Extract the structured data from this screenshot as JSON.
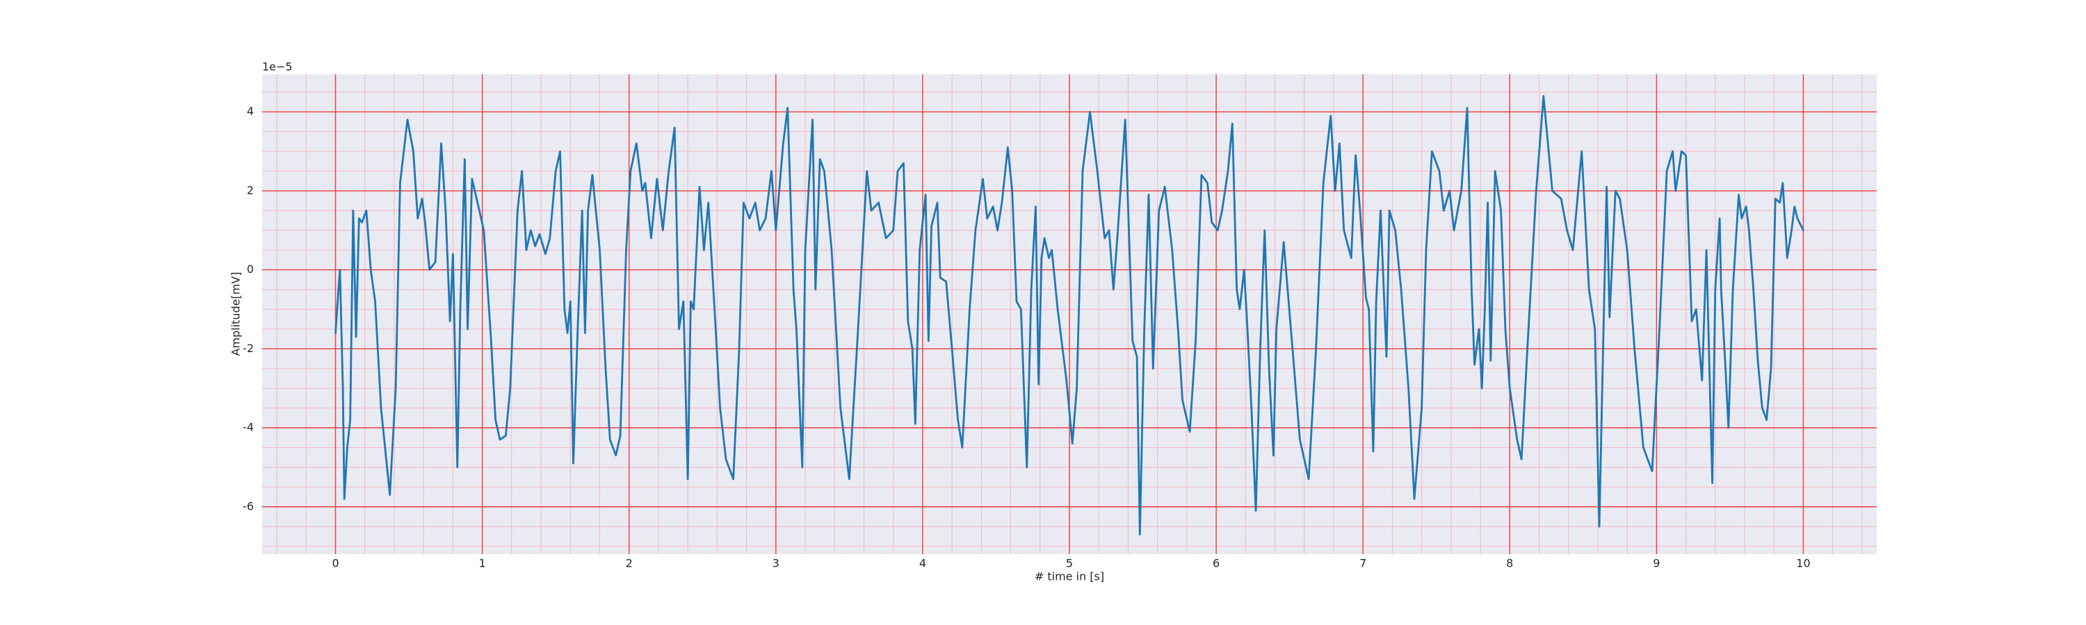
{
  "chart_data": {
    "type": "line",
    "x_label": "# time in [s]",
    "y_label": "Amplitude[mV]",
    "offset_label": "1e−5",
    "color": "#1f77b4",
    "grid": true,
    "grid_color": "#ee3b3b",
    "minor_grid_color": "#f4b6c0",
    "background": "#eaeaf2",
    "xlim": [
      -0.5,
      10.5
    ],
    "ylim": [
      -7.2,
      4.95
    ],
    "xticks": [
      0,
      1,
      2,
      3,
      4,
      5,
      6,
      7,
      8,
      9,
      10
    ],
    "yticks": [
      -6,
      -4,
      -2,
      0,
      2,
      4
    ],
    "xminor_ticks": [
      -0.4,
      -0.2,
      0.2,
      0.4,
      0.6,
      0.8,
      1.2,
      1.4,
      1.6,
      1.8,
      2.2,
      2.4,
      2.6,
      2.8,
      3.2,
      3.4,
      3.6,
      3.8,
      4.2,
      4.4,
      4.6,
      4.8,
      5.2,
      5.4,
      5.6,
      5.8,
      6.2,
      6.4,
      6.6,
      6.8,
      7.2,
      7.4,
      7.6,
      7.8,
      8.2,
      8.4,
      8.6,
      8.8,
      9.2,
      9.4,
      9.6,
      9.8,
      10.2,
      10.4
    ],
    "yminor_ticks": [
      -7,
      -6.5,
      -5.5,
      -5,
      -4.5,
      -3.5,
      -3,
      -2.5,
      -1.5,
      -1,
      -0.5,
      0.5,
      1,
      1.5,
      2.5,
      3,
      3.5,
      4.5
    ],
    "x": [
      0,
      0.02,
      0.03,
      0.05,
      0.06,
      0.08,
      0.1,
      0.12,
      0.14,
      0.16,
      0.18,
      0.2,
      0.21,
      0.24,
      0.27,
      0.31,
      0.37,
      0.41,
      0.44,
      0.49,
      0.53,
      0.56,
      0.59,
      0.61,
      0.64,
      0.68,
      0.72,
      0.75,
      0.78,
      0.8,
      0.83,
      0.85,
      0.88,
      0.9,
      0.93,
      0.98,
      1.01,
      1.06,
      1.09,
      1.12,
      1.16,
      1.19,
      1.24,
      1.27,
      1.3,
      1.33,
      1.36,
      1.39,
      1.43,
      1.46,
      1.5,
      1.53,
      1.56,
      1.58,
      1.6,
      1.62,
      1.65,
      1.68,
      1.7,
      1.72,
      1.75,
      1.8,
      1.84,
      1.87,
      1.91,
      1.94,
      1.98,
      2.01,
      2.05,
      2.09,
      2.11,
      2.15,
      2.19,
      2.23,
      2.27,
      2.31,
      2.34,
      2.37,
      2.4,
      2.42,
      2.44,
      2.48,
      2.51,
      2.54,
      2.59,
      2.62,
      2.66,
      2.71,
      2.75,
      2.78,
      2.82,
      2.86,
      2.89,
      2.93,
      2.97,
      3.0,
      3.05,
      3.08,
      3.12,
      3.14,
      3.18,
      3.2,
      3.25,
      3.27,
      3.3,
      3.33,
      3.38,
      3.44,
      3.5,
      3.56,
      3.62,
      3.65,
      3.7,
      3.75,
      3.8,
      3.83,
      3.87,
      3.9,
      3.93,
      3.95,
      3.98,
      4.02,
      4.04,
      4.06,
      4.1,
      4.12,
      4.16,
      4.2,
      4.24,
      4.27,
      4.32,
      4.36,
      4.41,
      4.44,
      4.48,
      4.51,
      4.54,
      4.58,
      4.61,
      4.64,
      4.67,
      4.71,
      4.74,
      4.77,
      4.79,
      4.81,
      4.83,
      4.86,
      4.88,
      4.92,
      4.98,
      5.02,
      5.05,
      5.09,
      5.14,
      5.19,
      5.24,
      5.27,
      5.3,
      5.33,
      5.38,
      5.43,
      5.46,
      5.48,
      5.51,
      5.54,
      5.57,
      5.61,
      5.65,
      5.7,
      5.74,
      5.77,
      5.82,
      5.86,
      5.9,
      5.94,
      5.97,
      6.01,
      6.04,
      6.08,
      6.11,
      6.14,
      6.16,
      6.19,
      6.21,
      6.24,
      6.27,
      6.3,
      6.33,
      6.36,
      6.39,
      6.41,
      6.46,
      6.52,
      6.57,
      6.63,
      6.68,
      6.73,
      6.78,
      6.81,
      6.84,
      6.87,
      6.92,
      6.95,
      6.98,
      7.02,
      7.04,
      7.07,
      7.09,
      7.12,
      7.16,
      7.18,
      7.22,
      7.26,
      7.31,
      7.35,
      7.4,
      7.43,
      7.47,
      7.52,
      7.55,
      7.59,
      7.62,
      7.67,
      7.71,
      7.74,
      7.76,
      7.79,
      7.81,
      7.83,
      7.85,
      7.87,
      7.9,
      7.94,
      7.97,
      8.0,
      8.05,
      8.08,
      8.12,
      8.18,
      8.23,
      8.29,
      8.35,
      8.39,
      8.43,
      8.49,
      8.54,
      8.58,
      8.61,
      8.63,
      8.66,
      8.68,
      8.72,
      8.75,
      8.8,
      8.85,
      8.91,
      8.97,
      9.02,
      9.07,
      9.11,
      9.13,
      9.17,
      9.2,
      9.24,
      9.27,
      9.31,
      9.34,
      9.38,
      9.4,
      9.43,
      9.44,
      9.47,
      9.49,
      9.52,
      9.56,
      9.58,
      9.61,
      9.63,
      9.66,
      9.69,
      9.72,
      9.75,
      9.78,
      9.81,
      9.84,
      9.86,
      9.89,
      9.92,
      9.94,
      9.96,
      10.0
    ],
    "values": [
      -1.6,
      -0.5,
      0.0,
      -3.0,
      -5.8,
      -4.5,
      -3.8,
      1.5,
      -1.7,
      1.3,
      1.2,
      1.4,
      1.5,
      0.0,
      -0.8,
      -3.5,
      -5.7,
      -3.0,
      2.2,
      3.8,
      3.0,
      1.3,
      1.8,
      1.2,
      0.0,
      0.2,
      3.2,
      1.5,
      -1.3,
      0.4,
      -5.0,
      -1.0,
      2.8,
      -1.5,
      2.3,
      1.5,
      1.0,
      -1.8,
      -3.8,
      -4.3,
      -4.2,
      -3.0,
      1.5,
      2.5,
      0.5,
      1.0,
      0.6,
      0.9,
      0.4,
      0.8,
      2.5,
      3.0,
      -1.0,
      -1.6,
      -0.8,
      -4.9,
      -1.5,
      1.5,
      -1.6,
      1.5,
      2.4,
      0.5,
      -2.5,
      -4.3,
      -4.7,
      -4.2,
      0.5,
      2.5,
      3.2,
      2.0,
      2.2,
      0.8,
      2.3,
      1.0,
      2.5,
      3.6,
      -1.5,
      -0.8,
      -5.3,
      -0.8,
      -1.0,
      2.1,
      0.5,
      1.7,
      -1.5,
      -3.5,
      -4.8,
      -5.3,
      -2.0,
      1.7,
      1.3,
      1.7,
      1.0,
      1.3,
      2.5,
      1.0,
      3.2,
      4.1,
      -0.5,
      -1.5,
      -5.0,
      0.5,
      3.8,
      -0.5,
      2.8,
      2.5,
      0.5,
      -3.5,
      -5.3,
      -1.5,
      2.5,
      1.5,
      1.7,
      0.8,
      1.0,
      2.5,
      2.7,
      -1.3,
      -2.0,
      -3.9,
      0.5,
      1.9,
      -1.8,
      1.1,
      1.7,
      -0.2,
      -0.3,
      -2.0,
      -3.8,
      -4.5,
      -1.0,
      1.0,
      2.3,
      1.3,
      1.6,
      1.0,
      1.7,
      3.1,
      2.0,
      -0.8,
      -1.0,
      -5.0,
      -0.5,
      1.6,
      -2.9,
      0.3,
      0.8,
      0.3,
      0.5,
      -1.0,
      -2.8,
      -4.4,
      -3.0,
      2.5,
      4.0,
      2.5,
      0.8,
      1.0,
      -0.5,
      1.0,
      3.8,
      -1.8,
      -2.2,
      -6.7,
      -1.5,
      1.9,
      -2.5,
      1.5,
      2.1,
      0.5,
      -1.5,
      -3.3,
      -4.1,
      -1.8,
      2.4,
      2.2,
      1.2,
      1.0,
      1.5,
      2.5,
      3.7,
      -0.5,
      -1.0,
      0.0,
      -1.3,
      -3.5,
      -6.1,
      -2.0,
      1.0,
      -2.5,
      -4.7,
      -1.5,
      0.7,
      -2.0,
      -4.3,
      -5.3,
      -2.0,
      2.2,
      3.9,
      2.0,
      3.2,
      1.0,
      0.3,
      2.9,
      1.5,
      -0.7,
      -1.0,
      -4.6,
      -0.8,
      1.5,
      -2.2,
      1.5,
      1.0,
      -0.5,
      -3.0,
      -5.8,
      -3.5,
      0.5,
      3.0,
      2.5,
      1.5,
      2.0,
      1.0,
      2.0,
      4.1,
      -0.5,
      -2.4,
      -1.5,
      -3.0,
      -1.0,
      1.7,
      -2.3,
      2.5,
      1.5,
      -1.5,
      -3.0,
      -4.3,
      -4.8,
      -2.0,
      2.0,
      4.4,
      2.0,
      1.8,
      1.0,
      0.5,
      3.0,
      -0.5,
      -1.5,
      -6.5,
      -3.0,
      2.1,
      -1.2,
      2.0,
      1.8,
      0.5,
      -2.0,
      -4.5,
      -5.1,
      -1.5,
      2.5,
      3.0,
      2.0,
      3.0,
      2.9,
      -1.3,
      -1.0,
      -2.8,
      0.5,
      -5.4,
      -0.5,
      1.3,
      -0.5,
      -2.5,
      -4.0,
      -0.5,
      1.9,
      1.3,
      1.6,
      1.0,
      -0.5,
      -2.3,
      -3.5,
      -3.8,
      -2.5,
      1.8,
      1.7,
      2.2,
      0.3,
      1.0,
      1.6,
      1.3,
      1.0
    ]
  }
}
